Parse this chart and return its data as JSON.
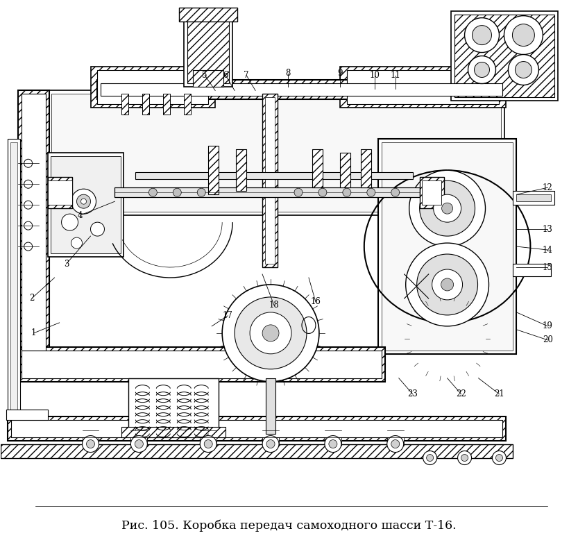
{
  "caption": "Рис. 105. Коробка передач самоходного шасси Т-16.",
  "caption_fontsize": 12.5,
  "background_color": "#ffffff",
  "fig_width": 8.33,
  "fig_height": 7.88,
  "dpi": 100
}
